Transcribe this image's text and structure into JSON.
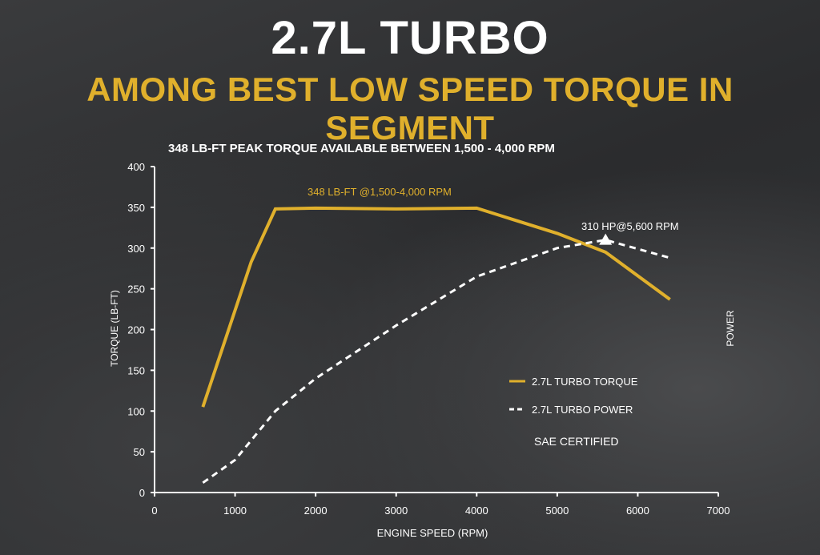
{
  "header": {
    "title": "2.7L TURBO",
    "subtitle": "AMONG BEST LOW SPEED TORQUE IN SEGMENT"
  },
  "colors": {
    "torque": "#e0b02c",
    "power": "#ffffff",
    "axes": "#ffffff"
  },
  "chart_data": {
    "type": "line",
    "title": "348 LB-FT PEAK TORQUE AVAILABLE BETWEEN 1,500 - 4,000 RPM",
    "xlabel": "ENGINE SPEED (RPM)",
    "ylabel": "TORQUE (LB-FT)",
    "y2label": "POWER",
    "xlim": [
      0,
      7000
    ],
    "ylim": [
      0,
      400
    ],
    "xticks": [
      "0",
      "1000",
      "2000",
      "3000",
      "4000",
      "5000",
      "6000",
      "7000"
    ],
    "yticks": [
      "0",
      "50",
      "100",
      "150",
      "200",
      "250",
      "300",
      "350",
      "400"
    ],
    "grid": false,
    "legend": "right",
    "series": [
      {
        "name": "2.7L TURBO TORQUE",
        "style": "solid",
        "x": [
          600,
          1200,
          1500,
          2000,
          3000,
          4000,
          5000,
          5600,
          6400
        ],
        "y": [
          105,
          283,
          348,
          349,
          348,
          349,
          318,
          295,
          237
        ]
      },
      {
        "name": "2.7L TURBO POWER",
        "style": "dashed",
        "x": [
          600,
          1000,
          1500,
          2000,
          3000,
          4000,
          5000,
          5600,
          6400
        ],
        "y": [
          12,
          40,
          100,
          140,
          205,
          265,
          300,
          310,
          288
        ]
      }
    ],
    "annotations": [
      {
        "text": "348 LB-FT @1,500-4,000 RPM"
      },
      {
        "text": "310 HP@5,600 RPM",
        "x": 5600,
        "y": 310,
        "marker": "triangle"
      },
      {
        "text": "SAE CERTIFIED"
      }
    ]
  }
}
